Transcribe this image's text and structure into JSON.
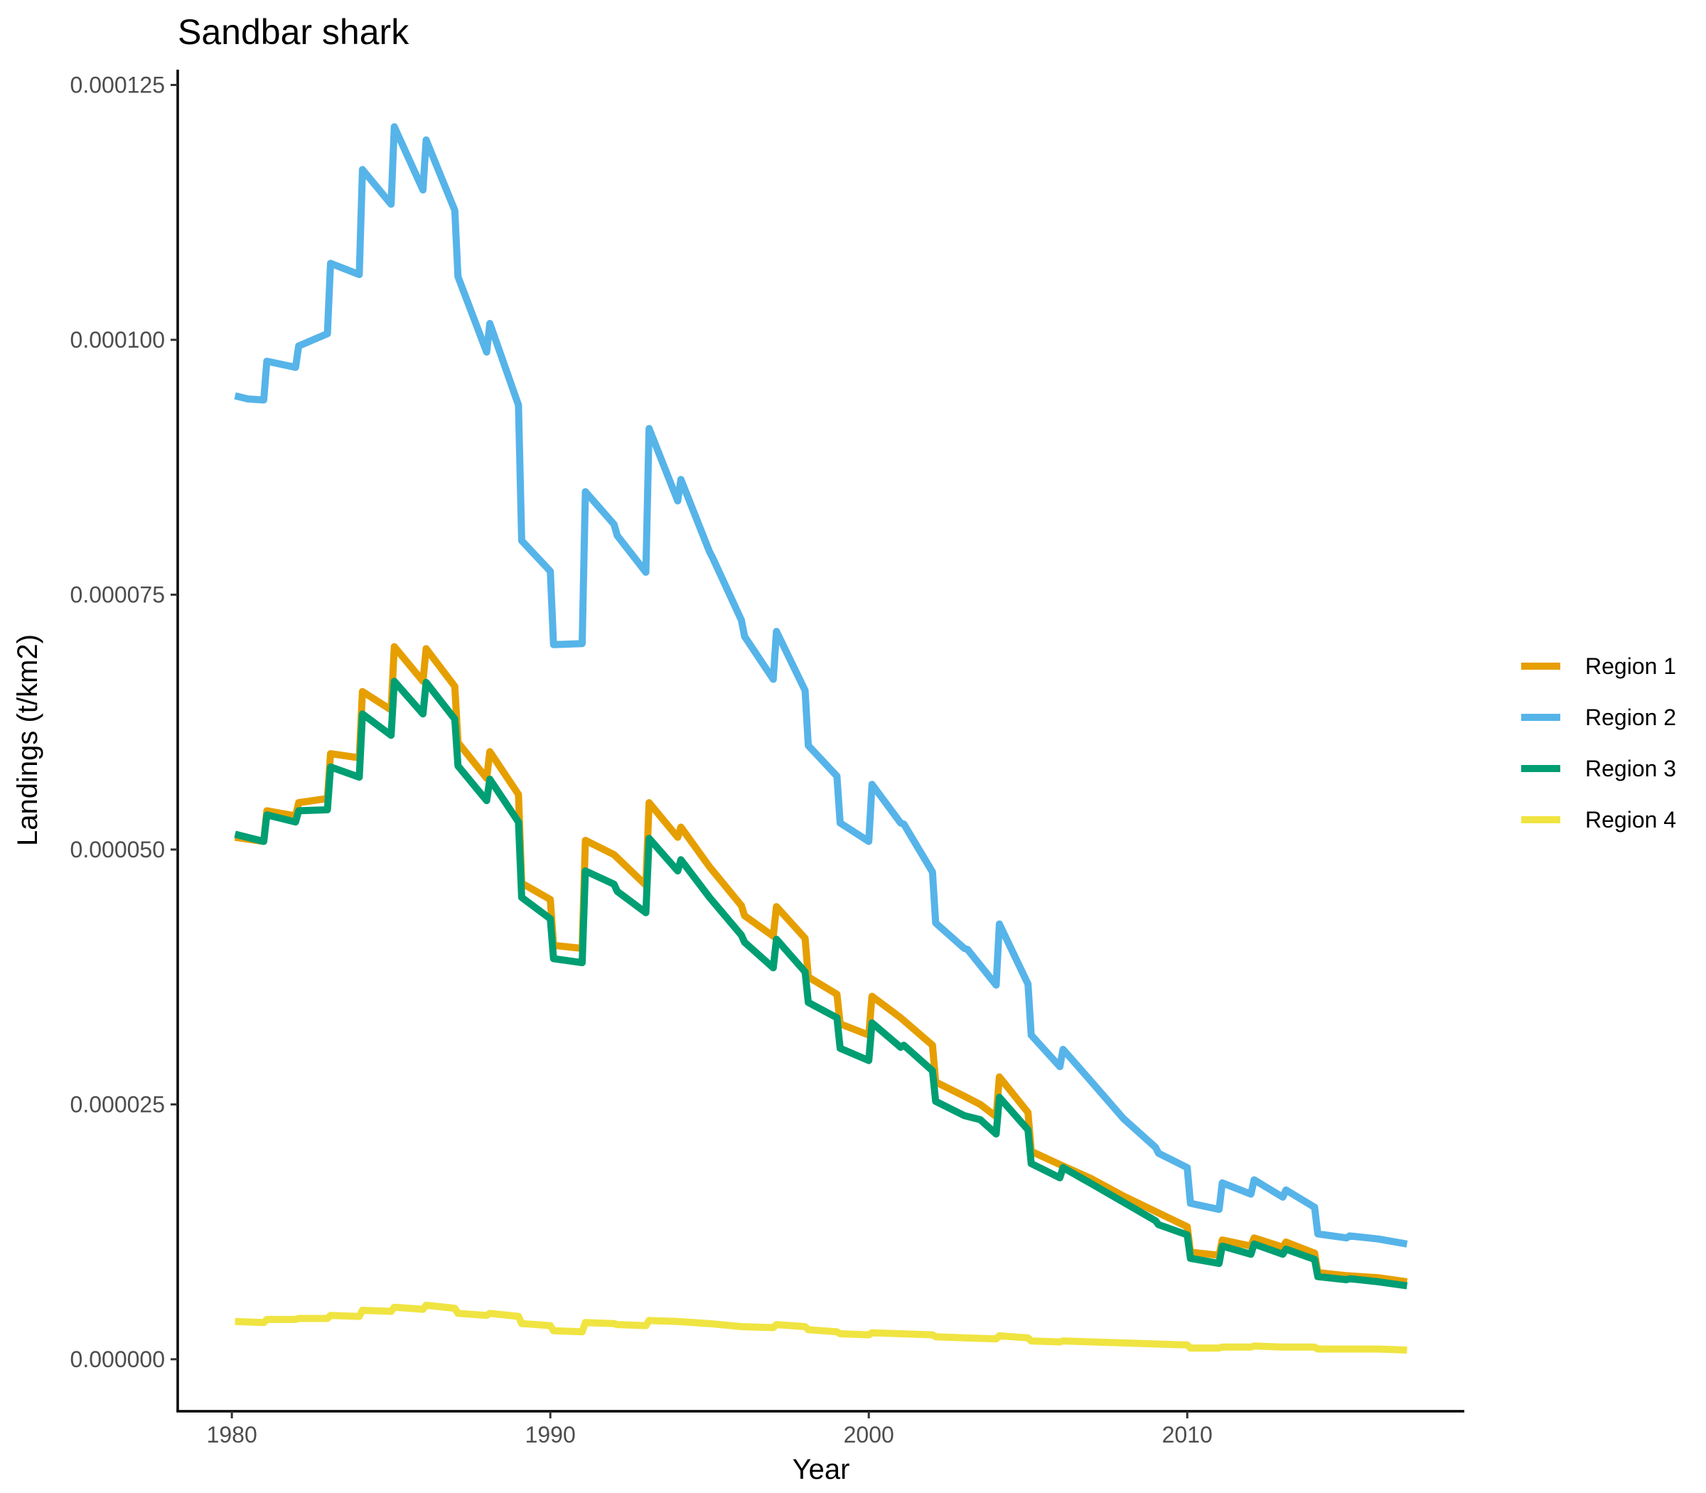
{
  "chart_data": {
    "type": "line",
    "title": "Sandbar shark",
    "xlabel": "Year",
    "ylabel": "Landings (t/km2)",
    "xlim": [
      1978.3,
      2018.7
    ],
    "ylim": [
      -5.1e-06,
      0.0001265
    ],
    "x_ticks": [
      {
        "value": 1980,
        "label": "1980"
      },
      {
        "value": 1990,
        "label": "1990"
      },
      {
        "value": 2000,
        "label": "2000"
      },
      {
        "value": 2010,
        "label": "2010"
      }
    ],
    "y_ticks": [
      {
        "value": 0.0,
        "label": "0.000000"
      },
      {
        "value": 2.5e-05,
        "label": "0.000025"
      },
      {
        "value": 5e-05,
        "label": "0.000050"
      },
      {
        "value": 7.5e-05,
        "label": "0.000075"
      },
      {
        "value": 0.0001,
        "label": "0.000100"
      },
      {
        "value": 0.000125,
        "label": "0.000125"
      }
    ],
    "grid": false,
    "legend_position": "right",
    "series": [
      {
        "name": "Region 1",
        "color": "#E69F00",
        "points": [
          [
            1980.1,
            5.12e-05
          ],
          [
            1981.0,
            5.08e-05
          ],
          [
            1981.1,
            5.38e-05
          ],
          [
            1982.0,
            5.33e-05
          ],
          [
            1982.1,
            5.46e-05
          ],
          [
            1983.0,
            5.5e-05
          ],
          [
            1983.1,
            5.94e-05
          ],
          [
            1984.0,
            5.9e-05
          ],
          [
            1984.1,
            6.55e-05
          ],
          [
            1985.0,
            6.37e-05
          ],
          [
            1985.1,
            6.99e-05
          ],
          [
            1986.0,
            6.65e-05
          ],
          [
            1986.1,
            6.97e-05
          ],
          [
            1987.0,
            6.6e-05
          ],
          [
            1987.1,
            6.05e-05
          ],
          [
            1988.0,
            5.7e-05
          ],
          [
            1988.1,
            5.96e-05
          ],
          [
            1989.0,
            5.54e-05
          ],
          [
            1989.1,
            4.67e-05
          ],
          [
            1990.0,
            4.51e-05
          ],
          [
            1990.1,
            4.06e-05
          ],
          [
            1991.0,
            4.03e-05
          ],
          [
            1991.1,
            5.09e-05
          ],
          [
            1992.0,
            4.95e-05
          ],
          [
            1993.0,
            4.65e-05
          ],
          [
            1993.1,
            5.46e-05
          ],
          [
            1994.0,
            5.12e-05
          ],
          [
            1994.1,
            5.22e-05
          ],
          [
            1995.0,
            4.83e-05
          ],
          [
            1996.0,
            4.45e-05
          ],
          [
            1996.1,
            4.35e-05
          ],
          [
            1997.0,
            4.15e-05
          ],
          [
            1997.1,
            4.44e-05
          ],
          [
            1998.0,
            4.13e-05
          ],
          [
            1998.1,
            3.75e-05
          ],
          [
            1999.0,
            3.58e-05
          ],
          [
            1999.1,
            3.29e-05
          ],
          [
            2000.0,
            3.18e-05
          ],
          [
            2000.1,
            3.56e-05
          ],
          [
            2001.0,
            3.35e-05
          ],
          [
            2002.0,
            3.08e-05
          ],
          [
            2002.1,
            2.72e-05
          ],
          [
            2003.0,
            2.58e-05
          ],
          [
            2003.5,
            2.5e-05
          ],
          [
            2004.0,
            2.38e-05
          ],
          [
            2004.1,
            2.77e-05
          ],
          [
            2005.0,
            2.42e-05
          ],
          [
            2005.1,
            2.04e-05
          ],
          [
            2006.0,
            1.91e-05
          ],
          [
            2007.0,
            1.77e-05
          ],
          [
            2008.0,
            1.6e-05
          ],
          [
            2009.0,
            1.45e-05
          ],
          [
            2010.0,
            1.3e-05
          ],
          [
            2010.1,
            1.05e-05
          ],
          [
            2011.0,
            1.02e-05
          ],
          [
            2011.1,
            1.17e-05
          ],
          [
            2012.0,
            1.11e-05
          ],
          [
            2012.1,
            1.19e-05
          ],
          [
            2013.0,
            1.1e-05
          ],
          [
            2013.1,
            1.15e-05
          ],
          [
            2014.0,
            1.04e-05
          ],
          [
            2014.1,
            8.5e-06
          ],
          [
            2015.0,
            8.2e-06
          ],
          [
            2016.0,
            8e-06
          ],
          [
            2016.9,
            7.6e-06
          ]
        ]
      },
      {
        "name": "Region 2",
        "color": "#56B4E9",
        "points": [
          [
            1980.1,
            9.45e-05
          ],
          [
            1980.5,
            9.42e-05
          ],
          [
            1981.0,
            9.41e-05
          ],
          [
            1981.1,
            9.79e-05
          ],
          [
            1982.0,
            9.73e-05
          ],
          [
            1982.1,
            9.94e-05
          ],
          [
            1983.0,
            0.0001006
          ],
          [
            1983.1,
            0.0001075
          ],
          [
            1984.0,
            0.0001064
          ],
          [
            1984.1,
            0.0001167
          ],
          [
            1985.0,
            0.0001133
          ],
          [
            1985.1,
            0.0001209
          ],
          [
            1986.0,
            0.0001147
          ],
          [
            1986.1,
            0.0001196
          ],
          [
            1987.0,
            0.0001127
          ],
          [
            1987.1,
            0.0001062
          ],
          [
            1988.0,
            9.88e-05
          ],
          [
            1988.1,
            0.0001016
          ],
          [
            1989.0,
            9.36e-05
          ],
          [
            1989.1,
            8.03e-05
          ],
          [
            1990.0,
            7.73e-05
          ],
          [
            1990.1,
            7.01e-05
          ],
          [
            1991.0,
            7.02e-05
          ],
          [
            1991.1,
            8.51e-05
          ],
          [
            1992.0,
            8.19e-05
          ],
          [
            1992.1,
            8.08e-05
          ],
          [
            1993.0,
            7.72e-05
          ],
          [
            1993.1,
            9.13e-05
          ],
          [
            1994.0,
            8.42e-05
          ],
          [
            1994.1,
            8.63e-05
          ],
          [
            1995.0,
            7.92e-05
          ],
          [
            1995.1,
            7.86e-05
          ],
          [
            1996.0,
            7.25e-05
          ],
          [
            1996.1,
            7.09e-05
          ],
          [
            1997.0,
            6.67e-05
          ],
          [
            1997.1,
            7.14e-05
          ],
          [
            1998.0,
            6.56e-05
          ],
          [
            1998.1,
            6.02e-05
          ],
          [
            1999.0,
            5.72e-05
          ],
          [
            1999.1,
            5.26e-05
          ],
          [
            2000.0,
            5.08e-05
          ],
          [
            2000.1,
            5.64e-05
          ],
          [
            2001.0,
            5.26e-05
          ],
          [
            2001.1,
            5.25e-05
          ],
          [
            2002.0,
            4.78e-05
          ],
          [
            2002.1,
            4.28e-05
          ],
          [
            2003.0,
            4.03e-05
          ],
          [
            2003.1,
            4.02e-05
          ],
          [
            2004.0,
            3.67e-05
          ],
          [
            2004.1,
            4.27e-05
          ],
          [
            2005.0,
            3.68e-05
          ],
          [
            2005.1,
            3.18e-05
          ],
          [
            2006.0,
            2.87e-05
          ],
          [
            2006.1,
            3.04e-05
          ],
          [
            2007.0,
            2.72e-05
          ],
          [
            2008.0,
            2.36e-05
          ],
          [
            2009.0,
            2.08e-05
          ],
          [
            2009.1,
            2.02e-05
          ],
          [
            2010.0,
            1.88e-05
          ],
          [
            2010.1,
            1.53e-05
          ],
          [
            2011.0,
            1.47e-05
          ],
          [
            2011.1,
            1.73e-05
          ],
          [
            2012.0,
            1.62e-05
          ],
          [
            2012.1,
            1.76e-05
          ],
          [
            2013.0,
            1.59e-05
          ],
          [
            2013.1,
            1.66e-05
          ],
          [
            2014.0,
            1.49e-05
          ],
          [
            2014.1,
            1.23e-05
          ],
          [
            2015.0,
            1.19e-05
          ],
          [
            2015.1,
            1.21e-05
          ],
          [
            2016.0,
            1.18e-05
          ],
          [
            2016.9,
            1.13e-05
          ]
        ]
      },
      {
        "name": "Region 3",
        "color": "#009E73",
        "points": [
          [
            1980.1,
            5.15e-05
          ],
          [
            1981.0,
            5.08e-05
          ],
          [
            1981.1,
            5.34e-05
          ],
          [
            1982.0,
            5.27e-05
          ],
          [
            1982.1,
            5.38e-05
          ],
          [
            1983.0,
            5.39e-05
          ],
          [
            1983.1,
            5.81e-05
          ],
          [
            1984.0,
            5.71e-05
          ],
          [
            1984.1,
            6.33e-05
          ],
          [
            1985.0,
            6.12e-05
          ],
          [
            1985.1,
            6.65e-05
          ],
          [
            1986.0,
            6.33e-05
          ],
          [
            1986.1,
            6.64e-05
          ],
          [
            1987.0,
            6.28e-05
          ],
          [
            1987.1,
            5.82e-05
          ],
          [
            1988.0,
            5.48e-05
          ],
          [
            1988.1,
            5.69e-05
          ],
          [
            1989.0,
            5.27e-05
          ],
          [
            1989.1,
            4.53e-05
          ],
          [
            1990.0,
            4.32e-05
          ],
          [
            1990.1,
            3.93e-05
          ],
          [
            1991.0,
            3.89e-05
          ],
          [
            1991.1,
            4.79e-05
          ],
          [
            1992.0,
            4.66e-05
          ],
          [
            1992.1,
            4.59e-05
          ],
          [
            1993.0,
            4.38e-05
          ],
          [
            1993.1,
            5.11e-05
          ],
          [
            1994.0,
            4.79e-05
          ],
          [
            1994.1,
            4.9e-05
          ],
          [
            1995.0,
            4.53e-05
          ],
          [
            1996.0,
            4.16e-05
          ],
          [
            1996.1,
            4.09e-05
          ],
          [
            1997.0,
            3.84e-05
          ],
          [
            1997.1,
            4.12e-05
          ],
          [
            1998.0,
            3.8e-05
          ],
          [
            1998.1,
            3.5e-05
          ],
          [
            1999.0,
            3.35e-05
          ],
          [
            1999.1,
            3.05e-05
          ],
          [
            2000.0,
            2.93e-05
          ],
          [
            2000.1,
            3.3e-05
          ],
          [
            2001.0,
            3.06e-05
          ],
          [
            2001.1,
            3.08e-05
          ],
          [
            2002.0,
            2.83e-05
          ],
          [
            2002.1,
            2.53e-05
          ],
          [
            2003.0,
            2.39e-05
          ],
          [
            2003.5,
            2.35e-05
          ],
          [
            2004.0,
            2.21e-05
          ],
          [
            2004.1,
            2.57e-05
          ],
          [
            2005.0,
            2.25e-05
          ],
          [
            2005.1,
            1.92e-05
          ],
          [
            2006.0,
            1.78e-05
          ],
          [
            2006.1,
            1.88e-05
          ],
          [
            2007.0,
            1.72e-05
          ],
          [
            2008.0,
            1.54e-05
          ],
          [
            2009.0,
            1.36e-05
          ],
          [
            2009.1,
            1.32e-05
          ],
          [
            2010.0,
            1.22e-05
          ],
          [
            2010.1,
            9.9e-06
          ],
          [
            2011.0,
            9.4e-06
          ],
          [
            2011.1,
            1.11e-05
          ],
          [
            2012.0,
            1.03e-05
          ],
          [
            2012.1,
            1.13e-05
          ],
          [
            2013.0,
            1.03e-05
          ],
          [
            2013.1,
            1.08e-05
          ],
          [
            2014.0,
            9.8e-06
          ],
          [
            2014.1,
            8.1e-06
          ],
          [
            2015.0,
            7.8e-06
          ],
          [
            2015.1,
            7.9e-06
          ],
          [
            2016.0,
            7.6e-06
          ],
          [
            2016.9,
            7.2e-06
          ]
        ]
      },
      {
        "name": "Region 4",
        "color": "#F0E442",
        "points": [
          [
            1980.1,
            3.7e-06
          ],
          [
            1981.0,
            3.6e-06
          ],
          [
            1981.1,
            3.9e-06
          ],
          [
            1982.0,
            3.9e-06
          ],
          [
            1982.1,
            4e-06
          ],
          [
            1983.0,
            4e-06
          ],
          [
            1983.1,
            4.3e-06
          ],
          [
            1984.0,
            4.2e-06
          ],
          [
            1984.1,
            4.8e-06
          ],
          [
            1985.0,
            4.7e-06
          ],
          [
            1985.1,
            5.1e-06
          ],
          [
            1986.0,
            4.9e-06
          ],
          [
            1986.1,
            5.3e-06
          ],
          [
            1987.0,
            5e-06
          ],
          [
            1987.1,
            4.5e-06
          ],
          [
            1988.0,
            4.3e-06
          ],
          [
            1988.1,
            4.5e-06
          ],
          [
            1989.0,
            4.2e-06
          ],
          [
            1989.1,
            3.5e-06
          ],
          [
            1990.0,
            3.3e-06
          ],
          [
            1990.1,
            2.8e-06
          ],
          [
            1991.0,
            2.7e-06
          ],
          [
            1991.1,
            3.6e-06
          ],
          [
            1992.0,
            3.5e-06
          ],
          [
            1992.1,
            3.4e-06
          ],
          [
            1993.0,
            3.3e-06
          ],
          [
            1993.1,
            3.8e-06
          ],
          [
            1994.0,
            3.7e-06
          ],
          [
            1995.0,
            3.5e-06
          ],
          [
            1996.0,
            3.2e-06
          ],
          [
            1997.0,
            3.1e-06
          ],
          [
            1997.1,
            3.4e-06
          ],
          [
            1998.0,
            3.2e-06
          ],
          [
            1998.1,
            2.9e-06
          ],
          [
            1999.0,
            2.7e-06
          ],
          [
            1999.1,
            2.5e-06
          ],
          [
            2000.0,
            2.4e-06
          ],
          [
            2000.1,
            2.6e-06
          ],
          [
            2001.0,
            2.5e-06
          ],
          [
            2002.0,
            2.4e-06
          ],
          [
            2002.1,
            2.2e-06
          ],
          [
            2003.0,
            2.1e-06
          ],
          [
            2004.0,
            2e-06
          ],
          [
            2004.1,
            2.3e-06
          ],
          [
            2005.0,
            2.1e-06
          ],
          [
            2005.1,
            1.8e-06
          ],
          [
            2006.0,
            1.7e-06
          ],
          [
            2006.1,
            1.8e-06
          ],
          [
            2007.0,
            1.7e-06
          ],
          [
            2008.0,
            1.6e-06
          ],
          [
            2009.0,
            1.5e-06
          ],
          [
            2010.0,
            1.4e-06
          ],
          [
            2010.1,
            1.1e-06
          ],
          [
            2011.0,
            1.1e-06
          ],
          [
            2011.1,
            1.2e-06
          ],
          [
            2012.0,
            1.2e-06
          ],
          [
            2012.1,
            1.3e-06
          ],
          [
            2013.0,
            1.2e-06
          ],
          [
            2014.0,
            1.2e-06
          ],
          [
            2014.1,
            1e-06
          ],
          [
            2015.0,
            1e-06
          ],
          [
            2016.0,
            1e-06
          ],
          [
            2016.9,
            9e-07
          ]
        ]
      }
    ]
  }
}
